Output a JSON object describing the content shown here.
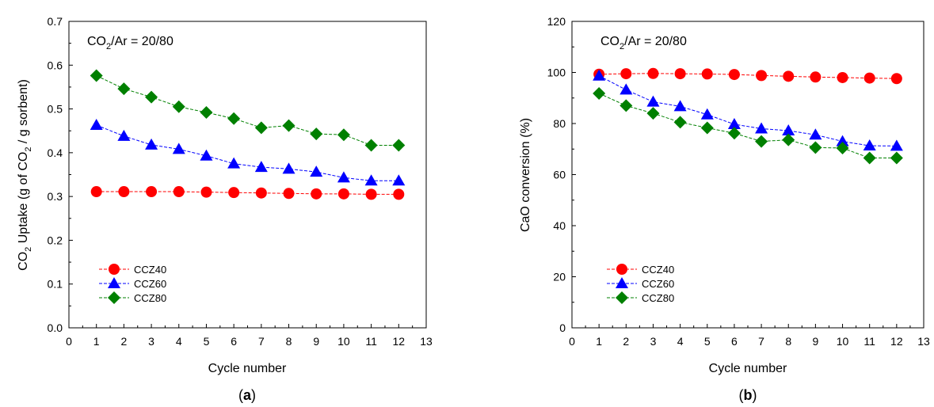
{
  "panels": [
    {
      "label_open": "(",
      "label_letter": "a",
      "label_close": ")"
    },
    {
      "label_open": "(",
      "label_letter": "b",
      "label_close": ")"
    }
  ],
  "chart_data": [
    {
      "type": "line",
      "annotation": {
        "prefix": "CO",
        "sub": "2",
        "suffix": "/Ar = 20/80"
      },
      "xlabel": "Cycle number",
      "ylabel": {
        "prefix": "CO",
        "sub1": "2",
        "middle": " Uptake (g of CO",
        "sub2": "2",
        "suffix": " / g sorbent)"
      },
      "xlim": [
        0,
        13
      ],
      "ylim": [
        0.0,
        0.7
      ],
      "xticks": [
        0,
        1,
        2,
        3,
        4,
        5,
        6,
        7,
        8,
        9,
        10,
        11,
        12,
        13
      ],
      "yticks": [
        "0.0",
        "0.1",
        "0.2",
        "0.3",
        "0.4",
        "0.5",
        "0.6",
        "0.7"
      ],
      "grid": false,
      "legend": "bottom-left",
      "x": [
        1,
        2,
        3,
        4,
        5,
        6,
        7,
        8,
        9,
        10,
        11,
        12
      ],
      "series": [
        {
          "name": "CCZ40",
          "marker": "circle",
          "color": "#ff0000",
          "values": [
            0.311,
            0.311,
            0.311,
            0.311,
            0.31,
            0.309,
            0.308,
            0.307,
            0.306,
            0.306,
            0.305,
            0.305
          ]
        },
        {
          "name": "CCZ60",
          "marker": "triangle",
          "color": "#0000ff",
          "values": [
            0.463,
            0.438,
            0.418,
            0.408,
            0.393,
            0.375,
            0.367,
            0.363,
            0.356,
            0.343,
            0.336,
            0.336
          ]
        },
        {
          "name": "CCZ80",
          "marker": "diamond",
          "color": "#008000",
          "values": [
            0.576,
            0.546,
            0.527,
            0.505,
            0.492,
            0.478,
            0.457,
            0.462,
            0.443,
            0.441,
            0.417,
            0.417
          ]
        }
      ]
    },
    {
      "type": "line",
      "annotation": {
        "prefix": "CO",
        "sub": "2",
        "suffix": "/Ar = 20/80"
      },
      "xlabel": "Cycle number",
      "ylabel": {
        "prefix": "CaO conversion (%)",
        "sub1": "",
        "middle": "",
        "sub2": "",
        "suffix": ""
      },
      "xlim": [
        0,
        13
      ],
      "ylim": [
        0,
        120
      ],
      "xticks": [
        0,
        1,
        2,
        3,
        4,
        5,
        6,
        7,
        8,
        9,
        10,
        11,
        12,
        13
      ],
      "yticks": [
        "0",
        "20",
        "40",
        "60",
        "80",
        "100",
        "120"
      ],
      "grid": false,
      "legend": "bottom-left",
      "x": [
        1,
        2,
        3,
        4,
        5,
        6,
        7,
        8,
        9,
        10,
        11,
        12
      ],
      "series": [
        {
          "name": "CCZ40",
          "marker": "circle",
          "color": "#ff0000",
          "values": [
            99.3,
            99.5,
            99.6,
            99.5,
            99.4,
            99.2,
            98.8,
            98.5,
            98.2,
            98.0,
            97.8,
            97.6
          ]
        },
        {
          "name": "CCZ60",
          "marker": "triangle",
          "color": "#0000ff",
          "values": [
            98.7,
            93.2,
            88.5,
            86.7,
            83.5,
            79.7,
            78.0,
            77.2,
            75.6,
            73.0,
            71.3,
            71.2
          ]
        },
        {
          "name": "CCZ80",
          "marker": "diamond",
          "color": "#008000",
          "values": [
            91.8,
            87.0,
            84.0,
            80.5,
            78.3,
            76.2,
            73.0,
            73.6,
            70.6,
            70.4,
            66.5,
            66.5
          ]
        }
      ]
    }
  ]
}
